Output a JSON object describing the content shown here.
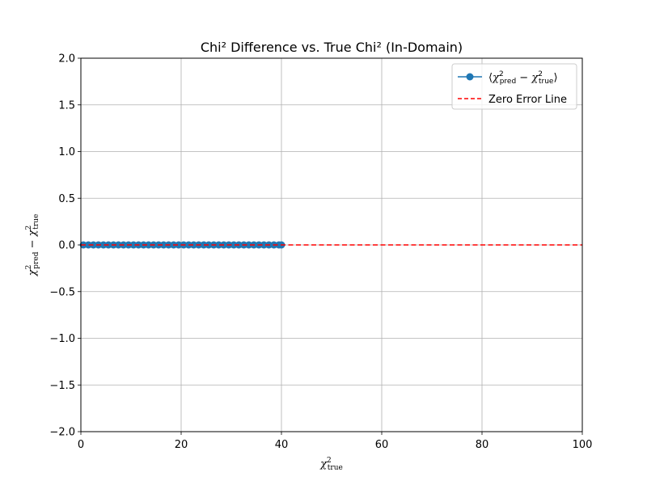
{
  "chart_data": {
    "type": "line",
    "title": "Chi² Difference vs. True Chi² (In-Domain)",
    "xlabel": "χ²true",
    "ylabel": "χ²pred − χ²true",
    "xlim": [
      0,
      100
    ],
    "ylim": [
      -2.0,
      2.0
    ],
    "xticks": [
      0,
      20,
      40,
      60,
      80,
      100
    ],
    "xtick_labels": [
      "0",
      "20",
      "40",
      "60",
      "80",
      "100"
    ],
    "yticks": [
      -2.0,
      -1.5,
      -1.0,
      -0.5,
      0.0,
      0.5,
      1.0,
      1.5,
      2.0
    ],
    "ytick_labels": [
      "−2.0",
      "−1.5",
      "−1.0",
      "−0.5",
      "0.0",
      "0.5",
      "1.0",
      "1.5",
      "2.0"
    ],
    "grid": true,
    "legend_placement": "top-right",
    "series": [
      {
        "name": "⟨χ²pred − χ²true⟩",
        "style": "line-with-markers",
        "color": "#1f77b4",
        "x": [
          0.5,
          1.5,
          2.5,
          3.5,
          4.5,
          5.5,
          6.5,
          7.5,
          8.5,
          9.5,
          10.5,
          11.5,
          12.5,
          13.5,
          14.5,
          15.5,
          16.5,
          17.5,
          18.5,
          19.5,
          20.5,
          21.5,
          22.5,
          23.5,
          24.5,
          25.5,
          26.5,
          27.5,
          28.5,
          29.5,
          30.5,
          31.5,
          32.5,
          33.5,
          34.5,
          35.5,
          36.5,
          37.5,
          38.5,
          39.5,
          40.0
        ],
        "y": [
          0,
          0,
          0,
          0,
          0,
          0,
          0,
          0,
          0,
          0,
          0,
          0,
          0,
          0,
          0,
          0,
          0,
          0,
          0,
          0,
          0,
          0,
          0,
          0,
          0,
          0,
          0,
          0,
          0,
          0,
          0,
          0,
          0,
          0,
          0,
          0,
          0,
          0,
          0,
          0,
          0
        ]
      },
      {
        "name": "Zero Error Line",
        "style": "dashed",
        "color": "#ff0000",
        "x": [
          0,
          100
        ],
        "y": [
          0,
          0
        ]
      }
    ]
  }
}
